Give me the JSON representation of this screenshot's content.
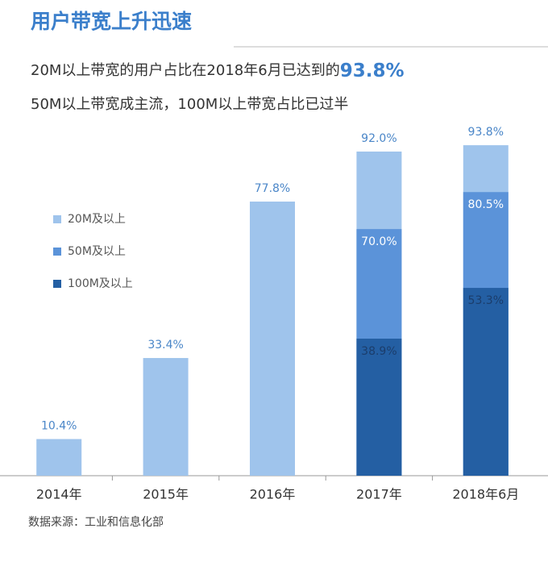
{
  "chart_data": {
    "type": "bar",
    "title": "用户带宽上升迅速",
    "subtitle": "20M以上带宽的用户占比在2018年6月已达到的",
    "highlight": "93.8%",
    "subtitle2": "50M以上带宽成主流，100M以上带宽占比已过半",
    "source": "数据来源：工业和信息化部",
    "categories": [
      "2014年",
      "2015年",
      "2016年",
      "2017年",
      "2018年6月"
    ],
    "series": [
      {
        "name": "20M及以上",
        "color": "#9fc4ec",
        "values": [
          10.4,
          33.4,
          77.8,
          92.0,
          93.8
        ],
        "value_labels": [
          "10.4%",
          "33.4%",
          "77.8%",
          "92.0%",
          "93.8%"
        ]
      },
      {
        "name": "50M及以上",
        "color": "#5b93d9",
        "values": [
          null,
          null,
          null,
          70.0,
          80.5
        ],
        "value_labels": [
          null,
          null,
          null,
          "70.0%",
          "80.5%"
        ]
      },
      {
        "name": "100M及以上",
        "color": "#245fa3",
        "values": [
          null,
          null,
          null,
          38.9,
          53.3
        ],
        "value_labels": [
          null,
          null,
          null,
          "38.9%",
          "53.3%"
        ]
      }
    ],
    "ylim": [
      0,
      100
    ],
    "grid": false
  }
}
